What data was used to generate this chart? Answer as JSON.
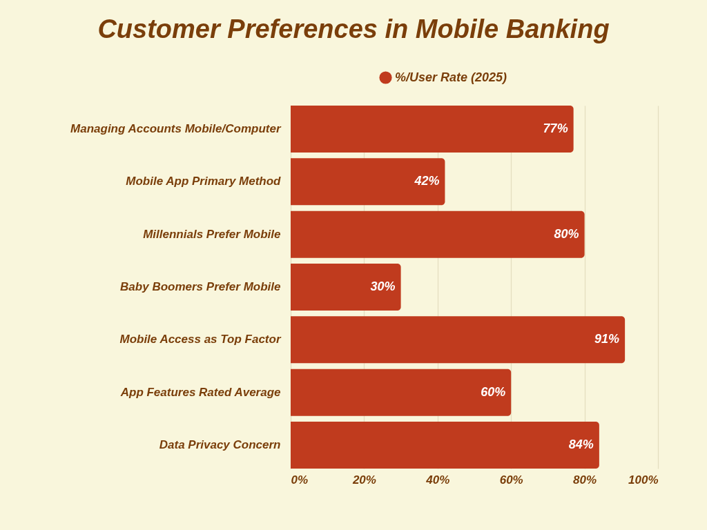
{
  "chart_data": {
    "type": "bar",
    "orientation": "horizontal",
    "title": "Customer Preferences in Mobile Banking",
    "categories": [
      "Managing Accounts Mobile/Computer",
      "Mobile App Primary Method",
      "Millennials Prefer Mobile",
      "Baby Boomers Prefer Mobile",
      "Mobile Access as Top Factor",
      "App Features Rated Average",
      "Data Privacy Concern"
    ],
    "series": [
      {
        "name": "%/User Rate (2025)",
        "color": "#c03b1e",
        "values": [
          77,
          42,
          80,
          30,
          91,
          60,
          84
        ],
        "value_labels": [
          "77%",
          "42%",
          "80%",
          "30%",
          "91%",
          "60%",
          "84%"
        ]
      }
    ],
    "xlim": [
      0,
      100
    ],
    "xticks": [
      {
        "value": 0,
        "label": "0%"
      },
      {
        "value": 20,
        "label": "20%"
      },
      {
        "value": 40,
        "label": "40%"
      },
      {
        "value": 60,
        "label": "60%"
      },
      {
        "value": 80,
        "label": "80%"
      },
      {
        "value": 100,
        "label": "100%"
      }
    ],
    "grid": "x",
    "legend": "top"
  }
}
